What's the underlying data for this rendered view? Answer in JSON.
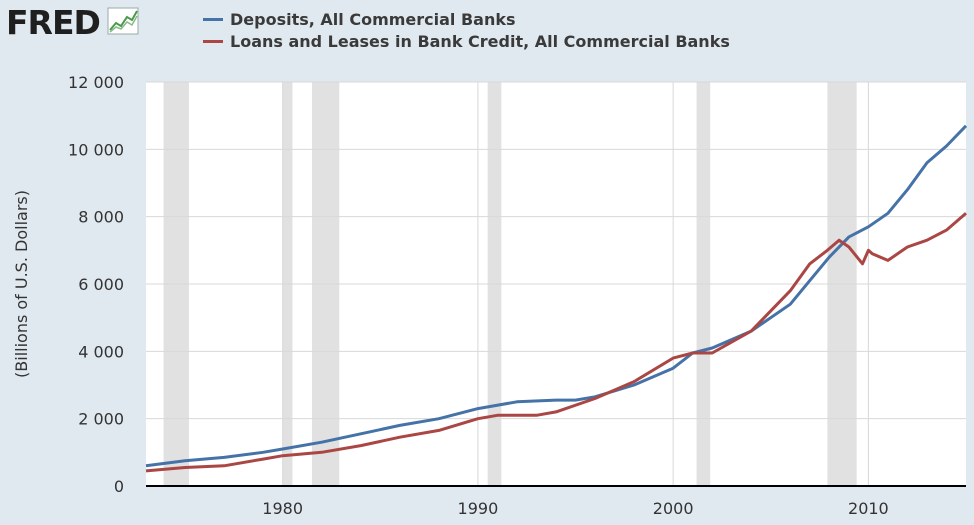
{
  "brand": {
    "logo_text": "FRED"
  },
  "chart_data": {
    "type": "line",
    "title": "",
    "ylabel": "(Billions of U.S. Dollars)",
    "xlabel": "",
    "xlim": [
      1973.0,
      2015.0
    ],
    "ylim": [
      0,
      12000
    ],
    "x_ticks": [
      1980,
      1990,
      2000,
      2010
    ],
    "y_ticks": [
      0,
      2000,
      4000,
      6000,
      8000,
      10000,
      12000
    ],
    "y_tick_labels": [
      "0",
      "2 000",
      "4 000",
      "6 000",
      "8 000",
      "10 000",
      "12 000"
    ],
    "grid": true,
    "legend_position": "top",
    "recessions": [
      [
        1973.9,
        1975.2
      ],
      [
        1980.0,
        1980.5
      ],
      [
        1981.5,
        1982.9
      ],
      [
        1990.5,
        1991.2
      ],
      [
        2001.2,
        2001.9
      ],
      [
        2007.9,
        2009.4
      ]
    ],
    "series": [
      {
        "name": "Deposits, All Commercial Banks",
        "color": "#4572a7",
        "x": [
          1973,
          1975,
          1977,
          1979,
          1980,
          1982,
          1984,
          1986,
          1988,
          1990,
          1992,
          1994,
          1995,
          1996,
          1998,
          2000,
          2001,
          2002,
          2004,
          2006,
          2007,
          2008,
          2009,
          2010,
          2011,
          2012,
          2013,
          2014,
          2015
        ],
        "y": [
          600,
          750,
          850,
          1000,
          1100,
          1300,
          1550,
          1800,
          2000,
          2300,
          2500,
          2550,
          2550,
          2650,
          3000,
          3500,
          3950,
          4100,
          4600,
          5400,
          6100,
          6800,
          7400,
          7700,
          8100,
          8800,
          9600,
          10100,
          10700
        ]
      },
      {
        "name": "Loans and Leases in Bank Credit, All Commercial Banks",
        "color": "#aa4643",
        "x": [
          1973,
          1975,
          1977,
          1979,
          1980,
          1982,
          1984,
          1986,
          1988,
          1990,
          1991,
          1992,
          1993,
          1994,
          1996,
          1998,
          2000,
          2001,
          2002,
          2004,
          2006,
          2007,
          2007.9,
          2008.5,
          2009,
          2009.7,
          2010,
          2010.2,
          2011,
          2012,
          2013,
          2014,
          2015
        ],
        "y": [
          450,
          550,
          600,
          800,
          900,
          1000,
          1200,
          1450,
          1650,
          2000,
          2100,
          2100,
          2100,
          2200,
          2600,
          3100,
          3800,
          3950,
          3950,
          4600,
          5800,
          6600,
          7000,
          7300,
          7100,
          6600,
          7000,
          6900,
          6700,
          7100,
          7300,
          7600,
          8100
        ]
      }
    ]
  }
}
